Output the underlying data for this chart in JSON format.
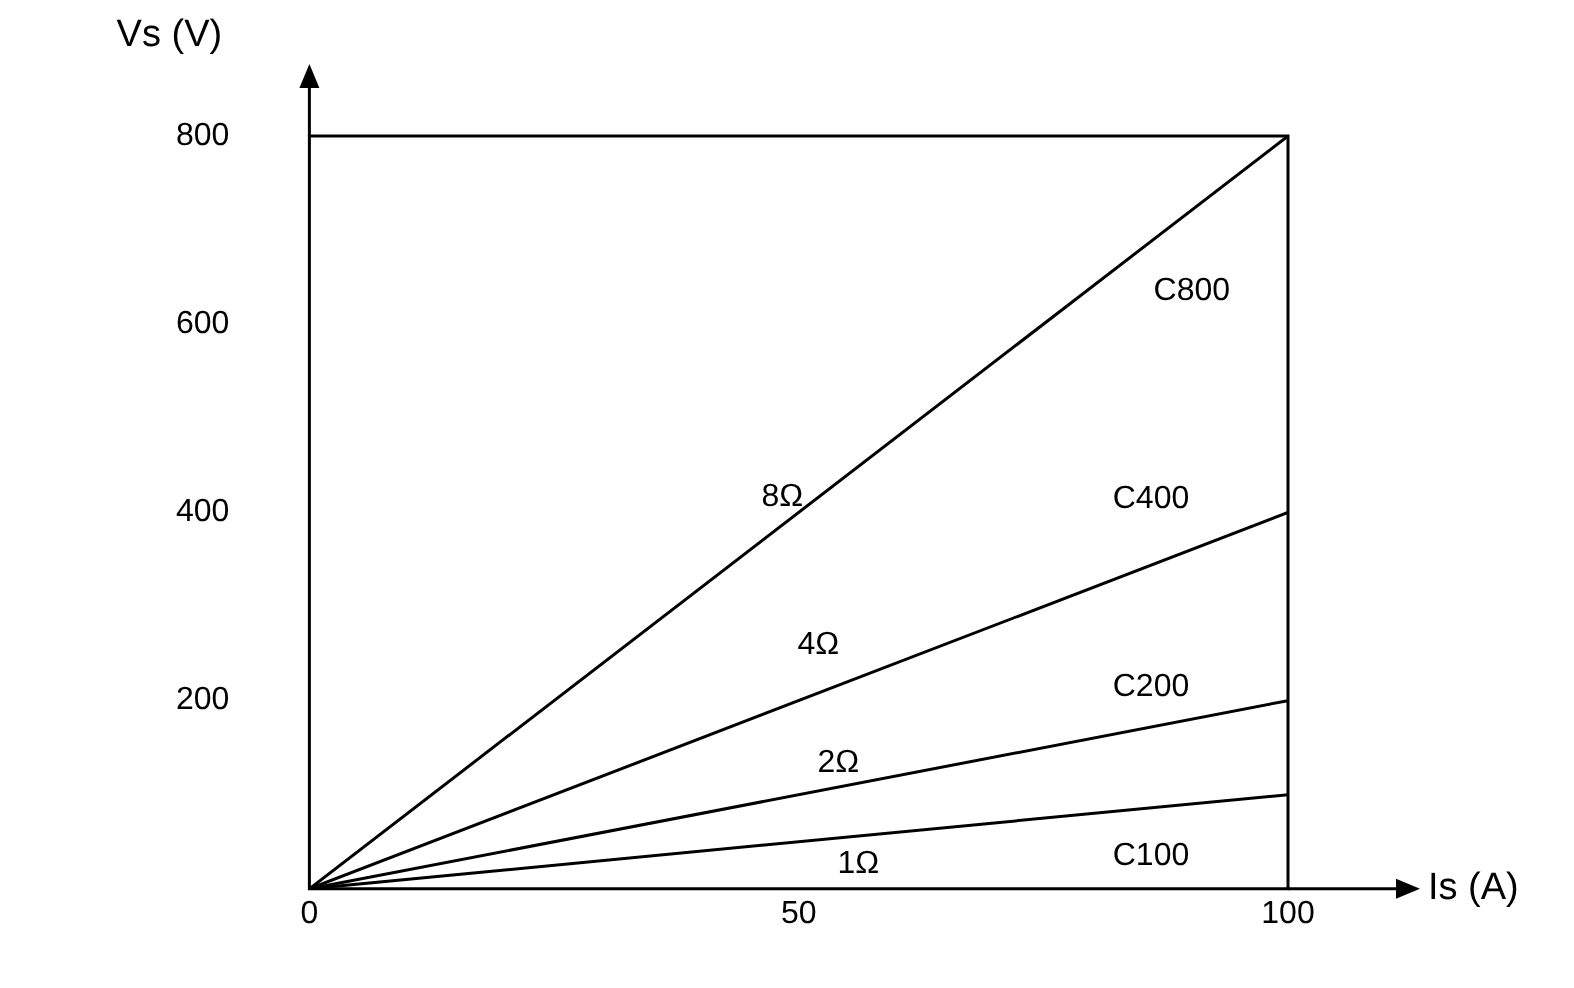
{
  "chart_data": {
    "type": "line",
    "xlabel": "Is (A)",
    "ylabel": "Vs (V)",
    "xlim": [
      0,
      100
    ],
    "ylim": [
      0,
      800
    ],
    "xticks": [
      0,
      50,
      100
    ],
    "yticks": [
      200,
      400,
      600,
      800
    ],
    "grid": false,
    "legend": false,
    "marker": "none",
    "line_style": "solid",
    "x": [
      0,
      100
    ],
    "series": [
      {
        "name": "8Ω",
        "color": "#000000",
        "values": [
          0,
          800
        ]
      },
      {
        "name": "4Ω",
        "color": "#000000",
        "values": [
          0,
          400
        ]
      },
      {
        "name": "2Ω",
        "color": "#000000",
        "values": [
          0,
          200
        ]
      },
      {
        "name": "1Ω",
        "color": "#000000",
        "values": [
          0,
          100
        ]
      }
    ],
    "annotations": [
      "C800",
      "C400",
      "C200",
      "C100"
    ]
  }
}
